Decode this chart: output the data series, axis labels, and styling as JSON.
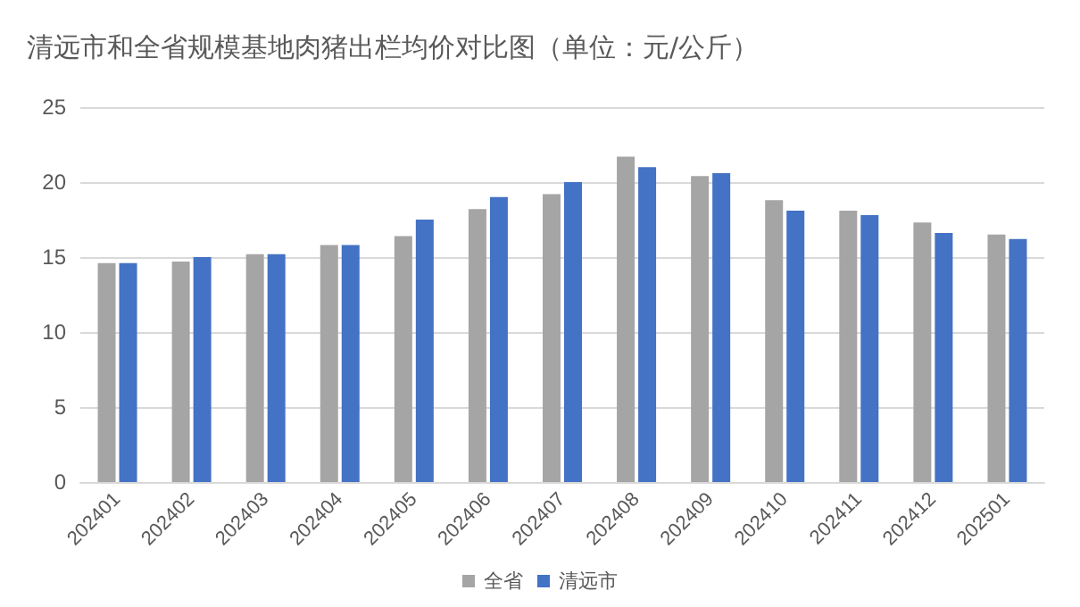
{
  "chart_data": {
    "type": "bar",
    "title": "清远市和全省规模基地肉猪出栏均价对比图（单位：元/公斤）",
    "categories": [
      "202401",
      "202402",
      "202403",
      "202404",
      "202405",
      "202406",
      "202407",
      "202408",
      "202409",
      "202410",
      "202411",
      "202412",
      "202501"
    ],
    "series": [
      {
        "name": "全省",
        "color": "#a5a5a5",
        "values": [
          14.6,
          14.7,
          15.2,
          15.8,
          16.4,
          18.2,
          19.2,
          21.7,
          20.4,
          18.8,
          18.1,
          17.3,
          16.5
        ]
      },
      {
        "name": "清远市",
        "color": "#4472c4",
        "values": [
          14.6,
          15.0,
          15.2,
          15.8,
          17.5,
          19.0,
          20.0,
          21.0,
          20.6,
          18.1,
          17.8,
          16.6,
          16.2
        ]
      }
    ],
    "ylim": [
      0,
      25
    ],
    "yticks": [
      0,
      5,
      10,
      15,
      20,
      25
    ],
    "grid": "y",
    "legend": "bottom"
  }
}
